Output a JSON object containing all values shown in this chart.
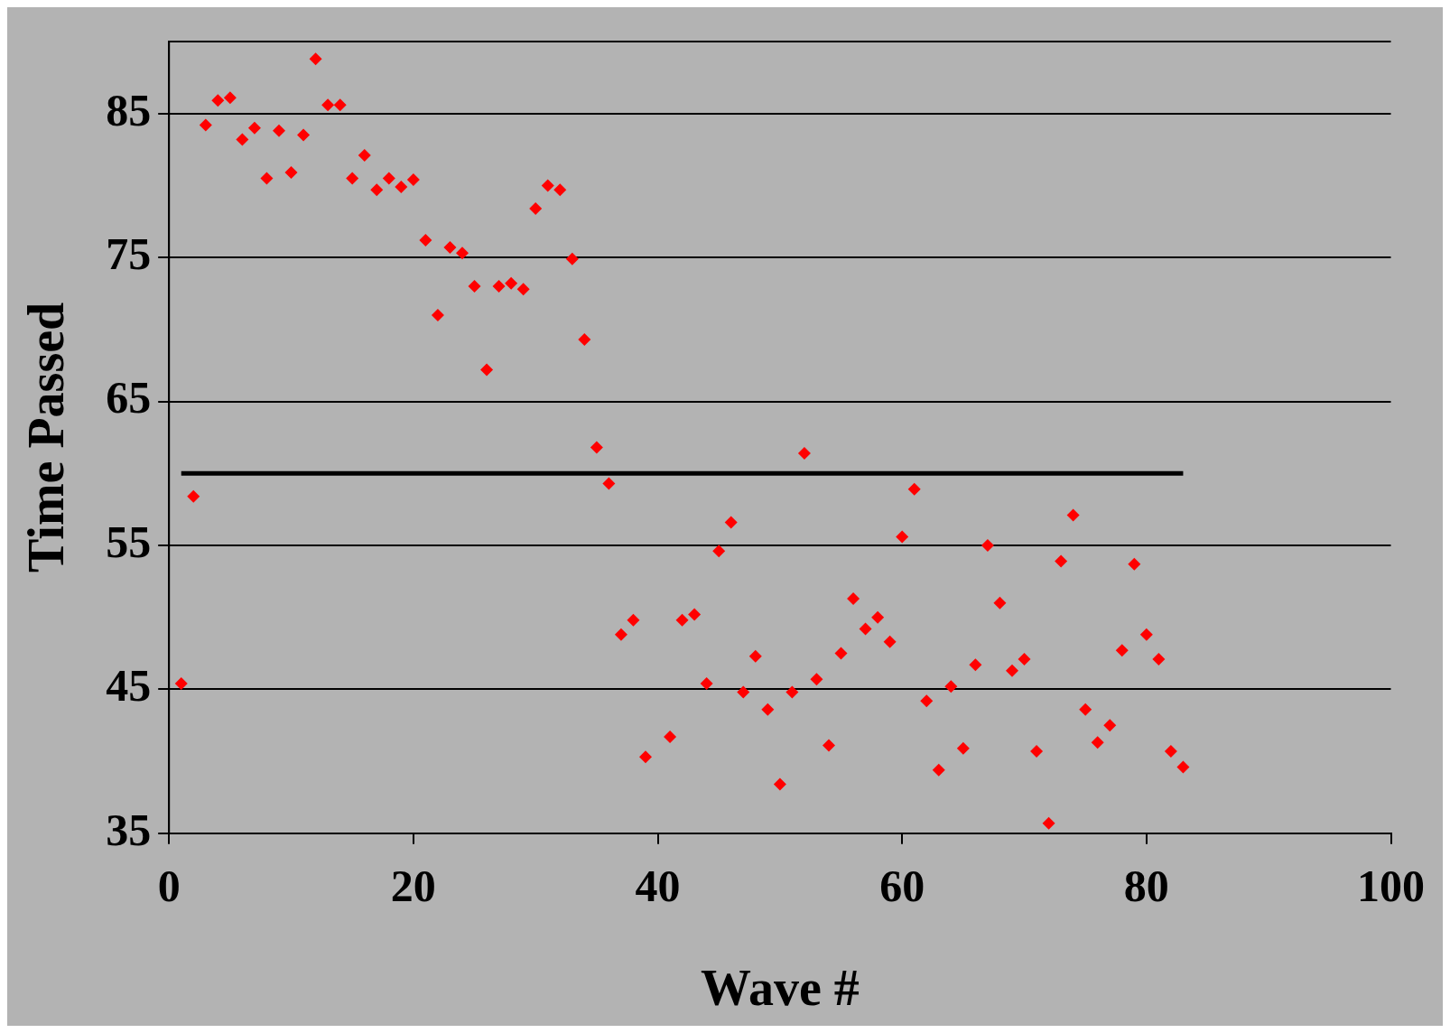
{
  "chart_data": {
    "type": "scatter",
    "xlabel": "Wave #",
    "ylabel": "Time Passed",
    "xlim": [
      0,
      100
    ],
    "xticks": [
      0,
      20,
      40,
      60,
      80,
      100
    ],
    "ylim": [
      35,
      90
    ],
    "yticks": [
      35,
      45,
      55,
      65,
      75,
      85
    ],
    "grid": "y",
    "legend": false,
    "marker": "diamond",
    "series": [
      {
        "type": "scatter",
        "color": "#ff0000",
        "x": [
          1,
          2,
          3,
          4,
          5,
          6,
          7,
          8,
          9,
          10,
          11,
          12,
          13,
          14,
          15,
          16,
          17,
          18,
          19,
          20,
          21,
          22,
          23,
          24,
          25,
          26,
          27,
          28,
          29,
          30,
          31,
          32,
          33,
          34,
          35,
          36,
          37,
          38,
          39,
          41,
          42,
          43,
          44,
          45,
          46,
          47,
          48,
          49,
          50,
          51,
          52,
          53,
          54,
          55,
          56,
          57,
          58,
          59,
          60,
          61,
          62,
          63,
          64,
          65,
          66,
          67,
          68,
          69,
          70,
          71,
          72,
          73,
          74,
          75,
          76,
          77,
          78,
          79,
          80,
          81,
          82,
          83
        ],
        "values": [
          45.4,
          58.4,
          84.2,
          85.9,
          86.1,
          83.2,
          84.0,
          80.5,
          83.8,
          80.9,
          83.5,
          88.8,
          85.6,
          85.6,
          80.5,
          82.1,
          79.7,
          80.5,
          79.9,
          80.4,
          76.2,
          71.0,
          75.7,
          75.3,
          73.0,
          67.2,
          73.0,
          73.2,
          72.8,
          78.4,
          80.0,
          79.7,
          74.9,
          69.3,
          61.8,
          59.3,
          48.8,
          49.8,
          40.3,
          41.7,
          49.8,
          50.2,
          45.4,
          54.6,
          56.6,
          44.8,
          47.3,
          43.6,
          38.4,
          44.8,
          61.4,
          45.7,
          41.1,
          47.5,
          51.3,
          49.2,
          50.0,
          48.3,
          55.6,
          58.9,
          44.2,
          39.4,
          45.2,
          40.9,
          46.7,
          55.0,
          51.0,
          46.3,
          47.1,
          40.7,
          35.7,
          53.9,
          57.1,
          43.6,
          41.3,
          42.5,
          47.7,
          53.7,
          48.8,
          47.1,
          40.7,
          39.6
        ]
      },
      {
        "type": "line",
        "color": "#000000",
        "marker": "none",
        "line_style": "solid",
        "x": [
          1,
          83
        ],
        "values": [
          60,
          60
        ]
      }
    ]
  }
}
